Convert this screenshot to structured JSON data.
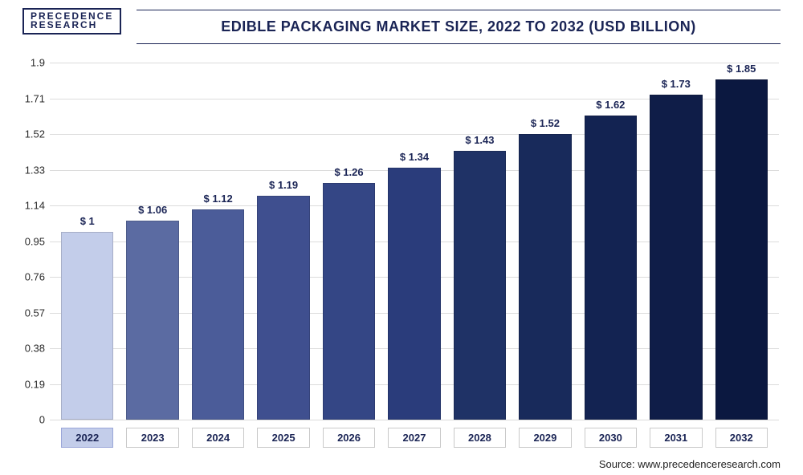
{
  "logo": {
    "line1": "PRECEDENCE",
    "line2": "RESEARCH"
  },
  "title": "EDIBLE PACKAGING MARKET SIZE, 2022 TO 2032 (USD BILLION)",
  "source": "Source: www.precedenceresearch.com",
  "chart": {
    "type": "bar",
    "categories": [
      "2022",
      "2023",
      "2024",
      "2025",
      "2026",
      "2027",
      "2028",
      "2029",
      "2030",
      "2031",
      "2032"
    ],
    "values": [
      1.0,
      1.06,
      1.12,
      1.19,
      1.26,
      1.34,
      1.43,
      1.52,
      1.62,
      1.73,
      1.85
    ],
    "value_labels": [
      "$ 1",
      "$ 1.06",
      "$ 1.12",
      "$ 1.19",
      "$ 1.26",
      "$ 1.34",
      "$ 1.43",
      "$ 1.52",
      "$ 1.62",
      "$ 1.73",
      "$ 1.85"
    ],
    "bar_colors": [
      "#c3cdea",
      "#5b6ba2",
      "#4b5c99",
      "#3f4f8f",
      "#344685",
      "#2a3c7b",
      "#1f3266",
      "#182a5b",
      "#132352",
      "#0f1d48",
      "#0b1840"
    ],
    "highlight_index": 0,
    "ymin": 0,
    "ymax": 1.9,
    "ytick_step": 0.19,
    "yticks": [
      0,
      0.19,
      0.38,
      0.57,
      0.76,
      0.95,
      1.14,
      1.33,
      1.52,
      1.71,
      1.9
    ],
    "background_color": "#ffffff",
    "grid_color": "#dcdcdc",
    "axis_color": "#888888",
    "title_color": "#1a2455",
    "label_color": "#1a2455",
    "title_fontsize": 18,
    "value_fontsize": 13,
    "axis_fontsize": 13,
    "bar_width": 0.78
  }
}
